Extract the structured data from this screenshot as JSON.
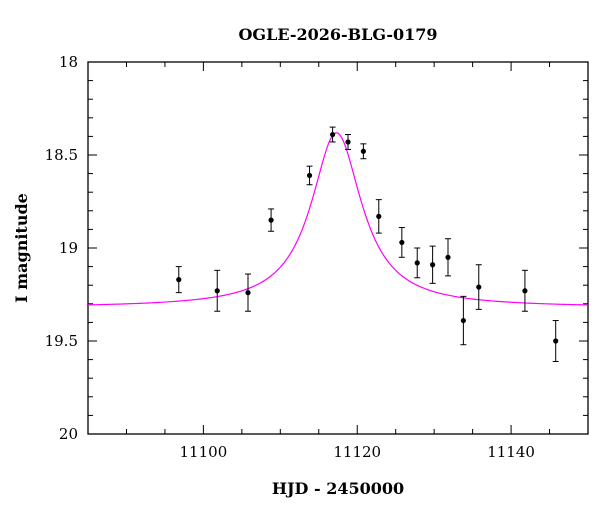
{
  "chart_data": {
    "type": "scatter",
    "title": "OGLE-2026-BLG-0179",
    "xlabel": "HJD - 2450000",
    "ylabel": "I magnitude",
    "xlim": [
      11085,
      11150
    ],
    "ylim": [
      20,
      18
    ],
    "y_inverted": true,
    "grid": false,
    "x_ticks": [
      {
        "value": 11100,
        "label": "11100"
      },
      {
        "value": 11120,
        "label": "11120"
      },
      {
        "value": 11140,
        "label": "11140"
      }
    ],
    "y_ticks": [
      {
        "value": 18,
        "label": "18"
      },
      {
        "value": 18.5,
        "label": "18.5"
      },
      {
        "value": 19,
        "label": "19"
      },
      {
        "value": 19.5,
        "label": "19.5"
      },
      {
        "value": 20,
        "label": "20"
      }
    ],
    "series": [
      {
        "kind": "data",
        "color": "#000000",
        "points": [
          {
            "x": 11096.8,
            "y": 19.17,
            "err": 0.07
          },
          {
            "x": 11101.8,
            "y": 19.23,
            "err": 0.11
          },
          {
            "x": 11105.8,
            "y": 19.24,
            "err": 0.1
          },
          {
            "x": 11108.8,
            "y": 18.85,
            "err": 0.06
          },
          {
            "x": 11113.8,
            "y": 18.61,
            "err": 0.05
          },
          {
            "x": 11116.8,
            "y": 18.39,
            "err": 0.04
          },
          {
            "x": 11118.8,
            "y": 18.43,
            "err": 0.04
          },
          {
            "x": 11120.8,
            "y": 18.48,
            "err": 0.04
          },
          {
            "x": 11122.8,
            "y": 18.83,
            "err": 0.09
          },
          {
            "x": 11125.8,
            "y": 18.97,
            "err": 0.08
          },
          {
            "x": 11127.8,
            "y": 19.08,
            "err": 0.08
          },
          {
            "x": 11129.8,
            "y": 19.09,
            "err": 0.1
          },
          {
            "x": 11131.8,
            "y": 19.05,
            "err": 0.1
          },
          {
            "x": 11133.8,
            "y": 19.39,
            "err": 0.13
          },
          {
            "x": 11135.8,
            "y": 19.21,
            "err": 0.12
          },
          {
            "x": 11141.8,
            "y": 19.23,
            "err": 0.11
          },
          {
            "x": 11145.8,
            "y": 19.5,
            "err": 0.11
          }
        ]
      },
      {
        "kind": "model",
        "color": "#ff00ff",
        "model": {
          "t0": 11117.3,
          "baseline_mag": 19.32,
          "peak_mag": 18.38,
          "half_width": 4.0
        }
      }
    ]
  }
}
